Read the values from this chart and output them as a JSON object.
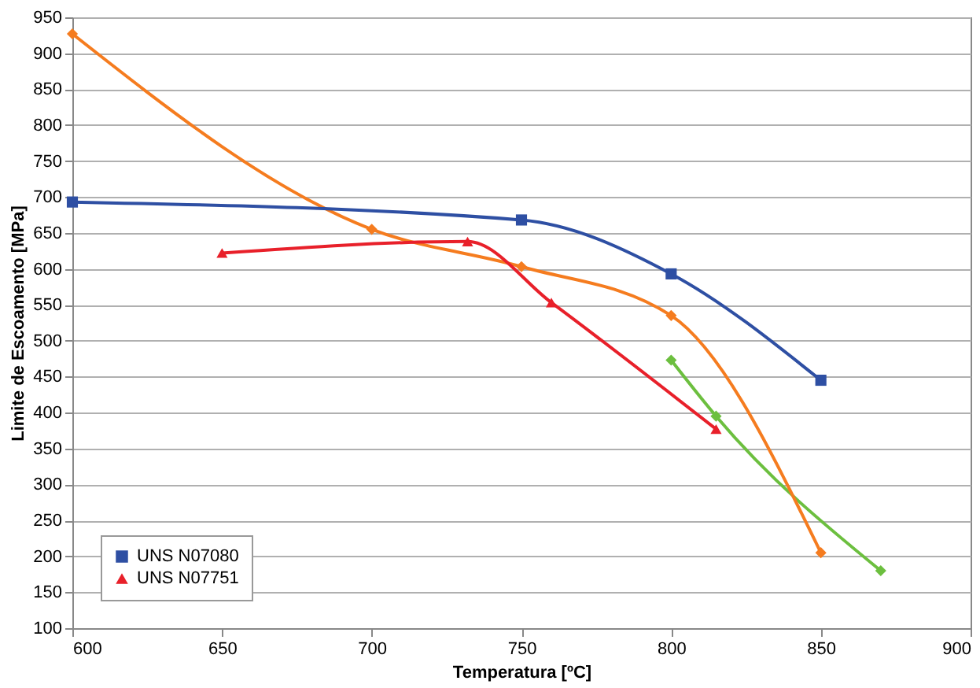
{
  "chart_data": {
    "type": "line",
    "xlabel": "Temperatura [ºC]",
    "ylabel": "Limite de Escoamento [MPa]",
    "xlim": [
      600,
      900
    ],
    "xticks": [
      600,
      650,
      700,
      750,
      800,
      850,
      900
    ],
    "ylim": [
      100,
      950
    ],
    "yticks": [
      100,
      150,
      200,
      250,
      300,
      350,
      400,
      450,
      500,
      550,
      600,
      650,
      700,
      750,
      800,
      850,
      900,
      950
    ],
    "grid": "y",
    "legend": "bottom left",
    "line_style": "solid",
    "series": [
      {
        "color": "#6cbf3f",
        "marker": "diamond",
        "x": [
          800,
          815,
          870
        ],
        "values": [
          473,
          395,
          180
        ]
      },
      {
        "color": "#f57c1f",
        "marker": "diamond",
        "x": [
          600,
          700,
          750,
          800,
          850
        ],
        "values": [
          927,
          655,
          603,
          535,
          205
        ]
      },
      {
        "name": "UNS N07080",
        "color": "#2e4fa3",
        "marker": "square",
        "x": [
          600,
          750,
          800,
          850
        ],
        "values": [
          693,
          668,
          593,
          445
        ]
      },
      {
        "name": "UNS N07751",
        "color": "#e8202a",
        "marker": "triangle",
        "x": [
          650,
          732,
          760,
          815
        ],
        "values": [
          622,
          638,
          553,
          377
        ]
      }
    ]
  }
}
